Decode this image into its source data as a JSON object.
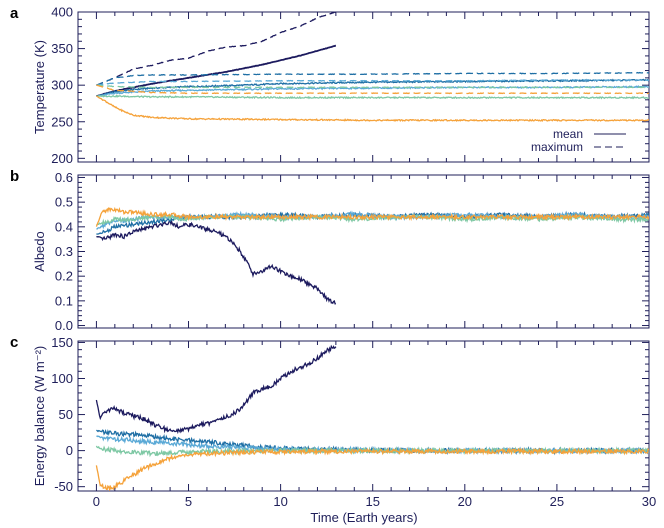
{
  "x_axis": {
    "label": "Time (Earth years)",
    "lim": [
      -1,
      30
    ],
    "major_ticks": [
      0,
      5,
      10,
      15,
      20,
      25,
      30
    ],
    "minor_step": 1
  },
  "series_colors": {
    "navy": "#1c1a5e",
    "blue": "#1f6fa5",
    "lightblue": "#5aa9d6",
    "green": "#7ec8a4",
    "orange": "#f5a23a"
  },
  "chart_data": [
    {
      "panel": "a",
      "type": "line",
      "ylabel": "Temperature (K)",
      "ylim": [
        195,
        400
      ],
      "yticks": [
        200,
        250,
        300,
        350,
        400
      ],
      "ytick_labels": [
        "200",
        "250",
        "300",
        "350",
        "400"
      ],
      "legend": {
        "placement": "bottom-right",
        "entries": [
          {
            "label": "mean",
            "style": "solid"
          },
          {
            "label": "maximum",
            "style": "dashed"
          }
        ]
      },
      "series": [
        {
          "color": "navy",
          "style": "solid",
          "x": [
            0,
            1,
            2,
            3,
            4,
            5,
            6,
            7,
            8,
            9,
            10,
            11,
            12,
            13
          ],
          "y": [
            285,
            292,
            297,
            302,
            306,
            310,
            314,
            318,
            323,
            328,
            334,
            340,
            347,
            354
          ]
        },
        {
          "color": "blue",
          "style": "solid",
          "x": [
            0,
            1,
            2,
            3,
            5,
            8,
            10,
            15,
            20,
            25,
            30
          ],
          "y": [
            285,
            291,
            294,
            296,
            298,
            300,
            302,
            304,
            305,
            306,
            307
          ]
        },
        {
          "color": "lightblue",
          "style": "solid",
          "x": [
            0,
            1,
            3,
            5,
            10,
            15,
            20,
            25,
            30
          ],
          "y": [
            285,
            289,
            292,
            293,
            295,
            296,
            297,
            297,
            298
          ]
        },
        {
          "color": "green",
          "style": "solid",
          "x": [
            0,
            1,
            3,
            5,
            10,
            15,
            20,
            25,
            30
          ],
          "y": [
            285,
            285,
            284,
            284,
            283,
            283,
            283,
            283,
            283
          ]
        },
        {
          "color": "orange",
          "style": "solid",
          "x": [
            0,
            0.5,
            1,
            1.5,
            2,
            3,
            5,
            10,
            15,
            20,
            25,
            30
          ],
          "y": [
            285,
            278,
            270,
            264,
            259,
            256,
            254,
            253,
            252,
            252,
            252,
            252
          ]
        },
        {
          "color": "navy",
          "style": "dashed",
          "x": [
            0,
            1,
            2,
            3,
            4,
            5,
            6,
            7,
            8,
            9,
            10,
            11,
            12,
            13
          ],
          "y": [
            300,
            310,
            322,
            327,
            334,
            337,
            346,
            352,
            354,
            360,
            372,
            380,
            392,
            400
          ]
        },
        {
          "color": "blue",
          "style": "dashed",
          "x": [
            0,
            1,
            2,
            3,
            5,
            10,
            15,
            20,
            25,
            30
          ],
          "y": [
            300,
            310,
            313,
            314,
            314,
            315,
            315,
            316,
            316,
            317
          ]
        },
        {
          "color": "lightblue",
          "style": "dashed",
          "x": [
            0,
            1,
            3,
            5,
            10,
            15,
            20,
            25,
            30
          ],
          "y": [
            300,
            303,
            305,
            305,
            306,
            306,
            306,
            307,
            307
          ]
        },
        {
          "color": "green",
          "style": "dashed",
          "x": [
            0,
            1,
            3,
            5,
            10,
            15,
            20,
            25,
            30
          ],
          "y": [
            300,
            298,
            297,
            297,
            297,
            297,
            297,
            297,
            297
          ]
        },
        {
          "color": "orange",
          "style": "dashed",
          "x": [
            0,
            1,
            3,
            5,
            10,
            15,
            20,
            25,
            30
          ],
          "y": [
            300,
            293,
            290,
            289,
            289,
            289,
            289,
            289,
            289
          ]
        }
      ]
    },
    {
      "panel": "b",
      "type": "line",
      "ylabel": "Albedo",
      "ylim": [
        -0.01,
        0.61
      ],
      "yticks": [
        0.0,
        0.1,
        0.2,
        0.3,
        0.4,
        0.5,
        0.6
      ],
      "ytick_labels": [
        "0.0",
        "0.1",
        "0.2",
        "0.3",
        "0.4",
        "0.5",
        "0.6"
      ],
      "series": [
        {
          "color": "navy",
          "x": [
            0,
            0.5,
            1,
            1.5,
            2,
            2.5,
            3,
            3.5,
            4,
            4.5,
            5,
            5.5,
            6,
            6.5,
            7,
            7.5,
            8,
            8.5,
            9,
            9.5,
            10,
            10.5,
            11,
            11.5,
            12,
            12.5,
            13
          ],
          "y": [
            0.36,
            0.35,
            0.37,
            0.36,
            0.38,
            0.39,
            0.4,
            0.41,
            0.42,
            0.4,
            0.41,
            0.4,
            0.39,
            0.38,
            0.36,
            0.33,
            0.28,
            0.21,
            0.22,
            0.24,
            0.22,
            0.2,
            0.19,
            0.17,
            0.15,
            0.11,
            0.09
          ]
        },
        {
          "color": "blue",
          "x": [
            0,
            0.5,
            1,
            2,
            3,
            4,
            5,
            6,
            8,
            10,
            12,
            14,
            16,
            18,
            20,
            22,
            24,
            26,
            28,
            30
          ],
          "y": [
            0.37,
            0.38,
            0.4,
            0.41,
            0.42,
            0.43,
            0.44,
            0.44,
            0.44,
            0.45,
            0.44,
            0.45,
            0.44,
            0.45,
            0.44,
            0.45,
            0.44,
            0.45,
            0.44,
            0.45
          ]
        },
        {
          "color": "lightblue",
          "x": [
            0,
            0.5,
            1,
            2,
            3,
            4,
            5,
            6,
            8,
            10,
            12,
            14,
            16,
            18,
            20,
            22,
            24,
            26,
            28,
            30
          ],
          "y": [
            0.39,
            0.41,
            0.42,
            0.43,
            0.44,
            0.44,
            0.44,
            0.44,
            0.45,
            0.44,
            0.44,
            0.45,
            0.44,
            0.44,
            0.45,
            0.44,
            0.44,
            0.45,
            0.44,
            0.44
          ]
        },
        {
          "color": "green",
          "x": [
            0,
            0.5,
            1,
            2,
            3,
            4,
            5,
            6,
            8,
            10,
            12,
            14,
            16,
            18,
            20,
            22,
            24,
            26,
            28,
            30
          ],
          "y": [
            0.41,
            0.42,
            0.43,
            0.43,
            0.44,
            0.44,
            0.43,
            0.44,
            0.44,
            0.43,
            0.44,
            0.43,
            0.44,
            0.44,
            0.43,
            0.44,
            0.43,
            0.44,
            0.43,
            0.43
          ]
        },
        {
          "color": "orange",
          "x": [
            0,
            0.3,
            0.6,
            1,
            1.5,
            2,
            3,
            4,
            5,
            6,
            8,
            10,
            12,
            14,
            16,
            18,
            20,
            22,
            24,
            26,
            28,
            30
          ],
          "y": [
            0.4,
            0.46,
            0.47,
            0.47,
            0.46,
            0.46,
            0.45,
            0.45,
            0.44,
            0.44,
            0.44,
            0.44,
            0.44,
            0.44,
            0.44,
            0.44,
            0.44,
            0.44,
            0.44,
            0.44,
            0.44,
            0.44
          ]
        }
      ]
    },
    {
      "panel": "c",
      "type": "line",
      "ylabel": "Energy balance (W m⁻²)",
      "ylim": [
        -56,
        152
      ],
      "yticks": [
        -50,
        0,
        50,
        100,
        150
      ],
      "ytick_labels": [
        "-50",
        "0",
        "50",
        "100",
        "150"
      ],
      "series": [
        {
          "color": "navy",
          "x": [
            0,
            0.2,
            0.5,
            1,
            1.5,
            2,
            2.5,
            3,
            3.5,
            4,
            4.5,
            5,
            5.5,
            6,
            6.5,
            7,
            7.5,
            8,
            8.5,
            9,
            9.5,
            10,
            10.5,
            11,
            11.5,
            12,
            12.5,
            13
          ],
          "y": [
            70,
            45,
            55,
            58,
            52,
            48,
            45,
            38,
            32,
            28,
            27,
            30,
            34,
            38,
            40,
            46,
            52,
            63,
            80,
            85,
            90,
            100,
            108,
            115,
            120,
            128,
            138,
            146
          ]
        },
        {
          "color": "blue",
          "x": [
            0,
            0.3,
            1,
            2,
            3,
            4,
            5,
            6,
            7,
            8,
            9,
            10,
            12,
            14,
            16,
            18,
            20,
            22,
            24,
            26,
            28,
            30
          ],
          "y": [
            28,
            26,
            24,
            22,
            20,
            16,
            14,
            12,
            10,
            7,
            5,
            3,
            2,
            1,
            0,
            0,
            0,
            0,
            0,
            0,
            0,
            0
          ]
        },
        {
          "color": "lightblue",
          "x": [
            0,
            0.3,
            1,
            2,
            3,
            4,
            5,
            6,
            7,
            8,
            9,
            10,
            12,
            14,
            16,
            18,
            20,
            22,
            24,
            26,
            28,
            30
          ],
          "y": [
            20,
            18,
            16,
            14,
            12,
            10,
            8,
            6,
            5,
            4,
            3,
            2,
            1,
            1,
            0,
            0,
            0,
            0,
            0,
            0,
            0,
            0
          ]
        },
        {
          "color": "green",
          "x": [
            0,
            0.3,
            1,
            2,
            3,
            4,
            5,
            6,
            8,
            10,
            12,
            14,
            16,
            18,
            20,
            22,
            24,
            26,
            28,
            30
          ],
          "y": [
            6,
            2,
            0,
            -2,
            -4,
            -3,
            -2,
            -1,
            -1,
            0,
            0,
            0,
            0,
            0,
            0,
            0,
            0,
            0,
            0,
            0
          ]
        },
        {
          "color": "orange",
          "x": [
            0,
            0.2,
            0.5,
            1,
            1.5,
            2,
            2.5,
            3,
            3.5,
            4,
            5,
            6,
            7,
            8,
            10,
            12,
            14,
            16,
            18,
            20,
            22,
            24,
            26,
            28,
            30
          ],
          "y": [
            -20,
            -48,
            -52,
            -50,
            -42,
            -34,
            -26,
            -20,
            -15,
            -10,
            -6,
            -4,
            -3,
            -2,
            -2,
            -1,
            -1,
            -1,
            -1,
            -1,
            -1,
            -1,
            -1,
            -1,
            -1
          ]
        }
      ]
    }
  ]
}
